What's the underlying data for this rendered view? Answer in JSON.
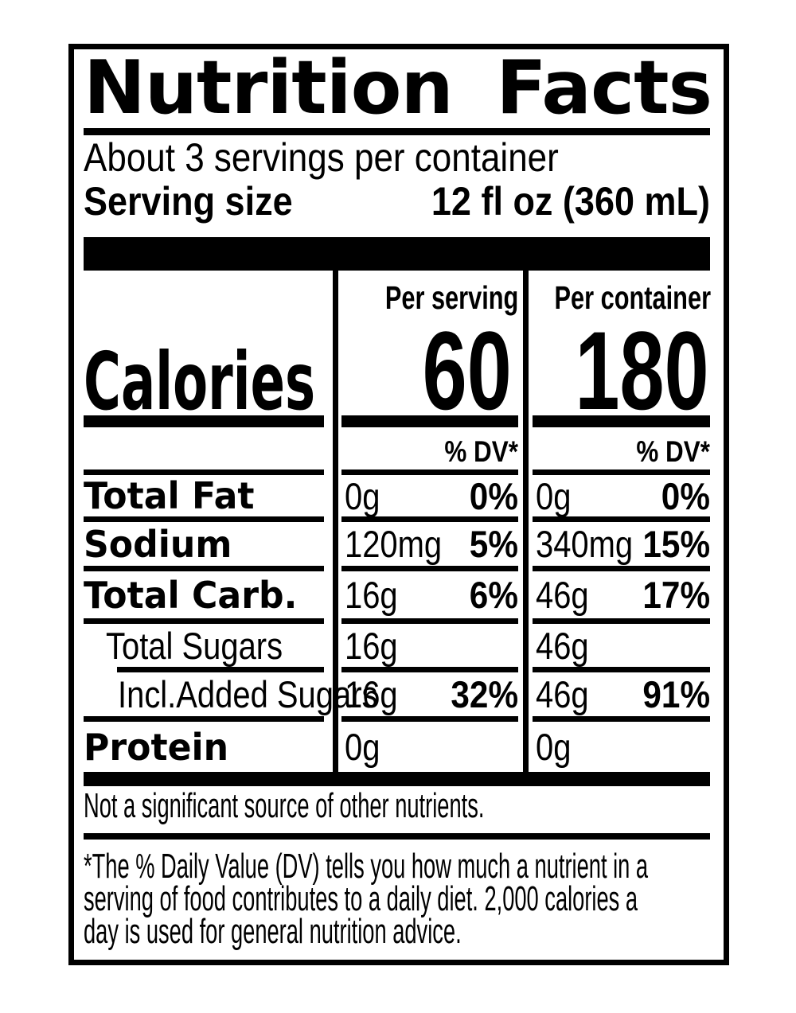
{
  "label": {
    "title_words": [
      "Nutrition",
      "Facts"
    ],
    "title": "Nutrition Facts",
    "servings_per_container": "About 3 servings per container",
    "serving_size_label": "Serving size",
    "serving_size_value": "12 fl oz (360 mL)",
    "calories": {
      "label": "Calories",
      "per_serving_header": "Per serving",
      "per_container_header": "Per container",
      "per_serving_value": "60",
      "per_container_value": "180"
    },
    "dv_header": "% DV*",
    "rows": [
      {
        "name": "Total Fat",
        "serving_amount": "0g",
        "serving_dv": "0%",
        "container_amount": "0g",
        "container_dv": "0%"
      },
      {
        "name": "Sodium",
        "serving_amount": "120mg",
        "serving_dv": "5%",
        "container_amount": "340mg",
        "container_dv": "15%"
      },
      {
        "name": "Total Carb.",
        "serving_amount": "16g",
        "serving_dv": "6%",
        "container_amount": "46g",
        "container_dv": "17%"
      },
      {
        "name": "Total Sugars",
        "serving_amount": "16g",
        "serving_dv": "",
        "container_amount": "46g",
        "container_dv": ""
      },
      {
        "name": "Incl.Added Sugars",
        "serving_amount": "16g",
        "serving_dv": "32%",
        "container_amount": "46g",
        "container_dv": "91%"
      },
      {
        "name": "Protein",
        "serving_amount": "0g",
        "serving_dv": "",
        "container_amount": "0g",
        "container_dv": ""
      }
    ],
    "not_significant": "Not a significant source of other nutrients.",
    "footnote_lines": [
      "*The % Daily Value (DV) tells you how much a nutrient in a",
      "serving of food contributes to a daily diet. 2,000 calories a",
      "day is used for general nutrition advice."
    ],
    "colors": {
      "ink": "#000000",
      "paper": "#ffffff"
    }
  }
}
